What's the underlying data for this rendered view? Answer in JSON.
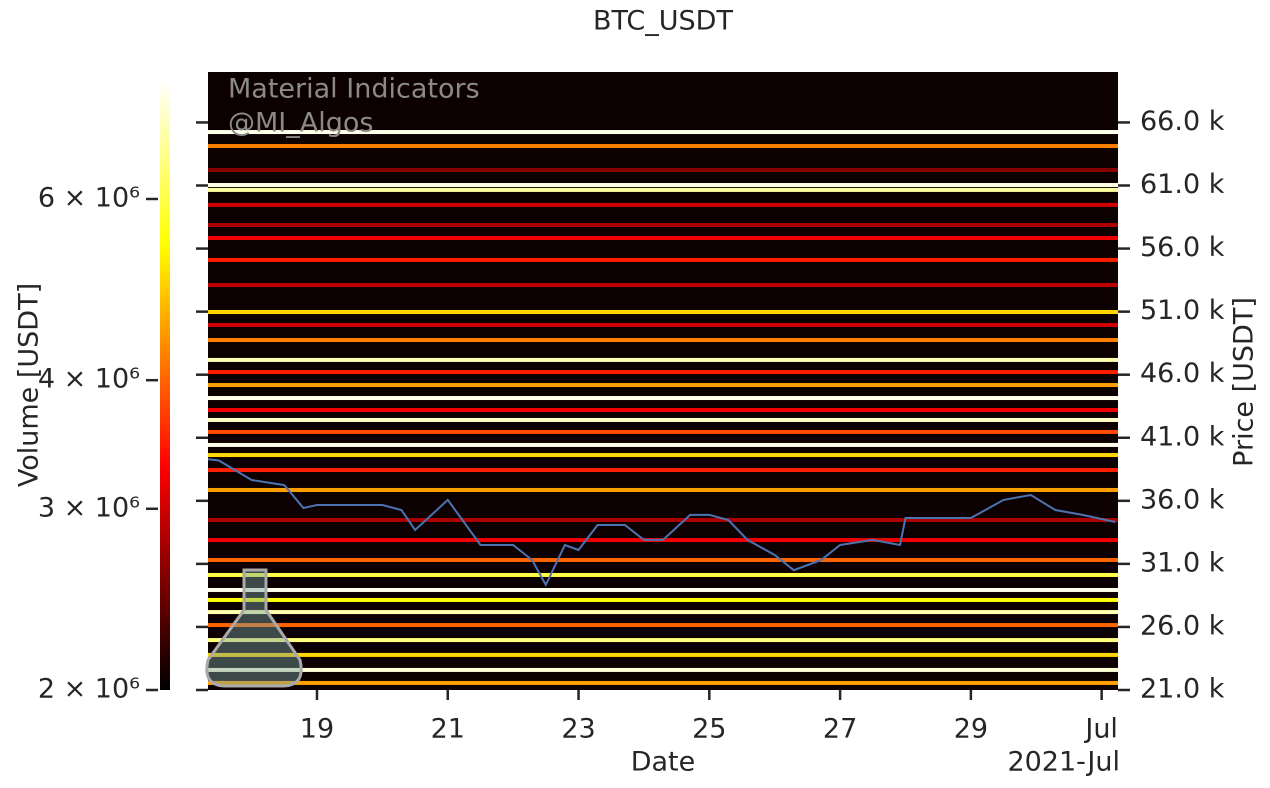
{
  "chart_data": {
    "type": "heatmap-line",
    "title": "BTC_USDT",
    "xlabel": "Date",
    "x_offset_label": "2021-Jul",
    "ylabel": "Price [USDT]",
    "annotations": [
      "Material Indicators",
      "@MI_Algos"
    ],
    "background": "#0d0000",
    "xlim": [
      "2021-06-17T08:00",
      "2021-07-01T06:00"
    ],
    "xticks": [
      {
        "value": "2021-06-19T00:00",
        "label": "19"
      },
      {
        "value": "2021-06-21T00:00",
        "label": "21"
      },
      {
        "value": "2021-06-23T00:00",
        "label": "23"
      },
      {
        "value": "2021-06-25T00:00",
        "label": "25"
      },
      {
        "value": "2021-06-27T00:00",
        "label": "27"
      },
      {
        "value": "2021-06-29T00:00",
        "label": "29"
      },
      {
        "value": "2021-07-01T00:00",
        "label": "Jul"
      }
    ],
    "ylim": [
      21000,
      70000
    ],
    "yticks": [
      {
        "value": 21000,
        "label": "21.0 k"
      },
      {
        "value": 26000,
        "label": "26.0 k"
      },
      {
        "value": 31000,
        "label": "31.0 k"
      },
      {
        "value": 36000,
        "label": "36.0 k"
      },
      {
        "value": 41000,
        "label": "41.0 k"
      },
      {
        "value": 46000,
        "label": "46.0 k"
      },
      {
        "value": 51000,
        "label": "51.0 k"
      },
      {
        "value": 56000,
        "label": "56.0 k"
      },
      {
        "value": 61000,
        "label": "61.0 k"
      },
      {
        "value": 66000,
        "label": "66.0 k"
      }
    ],
    "colorbar": {
      "label": "Volume [USDT]",
      "colormap": "hot",
      "log": true,
      "lim": [
        2000000,
        7830000
      ],
      "ticks": [
        {
          "value": 2000000,
          "label": "2 × 10⁶"
        },
        {
          "value": 3000000,
          "label": "3 × 10⁶"
        },
        {
          "value": 4000000,
          "label": "4 × 10⁶"
        },
        {
          "value": 6000000,
          "label": "6 × 10⁶"
        }
      ]
    },
    "levels": {
      "prices": [
        65240,
        64130,
        62230,
        61040,
        60650,
        59460,
        57870,
        56840,
        55100,
        53110,
        50970,
        49940,
        48750,
        47170,
        46210,
        45180,
        44150,
        43200,
        42410,
        41460,
        40430,
        39630,
        38440,
        36860,
        34480,
        32890,
        31310,
        30120,
        28930,
        28140,
        27180,
        26150,
        24960,
        23780,
        22590,
        21560
      ],
      "volumes": [
        7600000,
        4200000,
        2600000,
        7500000,
        6800000,
        3000000,
        2800000,
        3200000,
        3500000,
        2900000,
        5000000,
        3000000,
        4200000,
        7000000,
        3500000,
        4500000,
        7600000,
        3200000,
        7200000,
        3800000,
        7600000,
        5000000,
        3500000,
        4500000,
        2800000,
        3200000,
        4000000,
        6000000,
        7600000,
        5500000,
        7000000,
        4000000,
        6500000,
        5000000,
        7400000,
        4500000
      ]
    },
    "series": [
      {
        "color": "#4c72b0",
        "x": [
          "2021-06-17T08:00",
          "2021-06-17T12:00",
          "2021-06-18T00:00",
          "2021-06-18T12:00",
          "2021-06-18T19:00",
          "2021-06-19T00:00",
          "2021-06-19T12:00",
          "2021-06-20T00:00",
          "2021-06-20T07:00",
          "2021-06-20T12:00",
          "2021-06-21T00:00",
          "2021-06-21T12:00",
          "2021-06-22T00:00",
          "2021-06-22T07:00",
          "2021-06-22T12:00",
          "2021-06-22T19:00",
          "2021-06-23T00:00",
          "2021-06-23T07:00",
          "2021-06-23T17:00",
          "2021-06-24T00:00",
          "2021-06-24T07:00",
          "2021-06-24T17:00",
          "2021-06-25T00:00",
          "2021-06-25T07:00",
          "2021-06-25T14:00",
          "2021-06-26T00:00",
          "2021-06-26T07:00",
          "2021-06-26T17:00",
          "2021-06-27T00:00",
          "2021-06-27T12:00",
          "2021-06-27T22:00",
          "2021-06-28T00:00",
          "2021-06-28T12:00",
          "2021-06-29T00:00",
          "2021-06-29T12:00",
          "2021-06-29T22:00",
          "2021-06-30T07:00",
          "2021-06-30T17:00",
          "2021-07-01T05:00"
        ],
        "values": [
          39300,
          39200,
          37650,
          37250,
          35430,
          35670,
          35670,
          35670,
          35270,
          33690,
          36070,
          32500,
          32500,
          31300,
          29330,
          32500,
          32100,
          34080,
          34080,
          32900,
          32900,
          34880,
          34880,
          34480,
          32900,
          31700,
          30500,
          31300,
          32500,
          32900,
          32500,
          34640,
          34640,
          34640,
          36070,
          36460,
          35270,
          34880,
          34320
        ]
      }
    ]
  }
}
